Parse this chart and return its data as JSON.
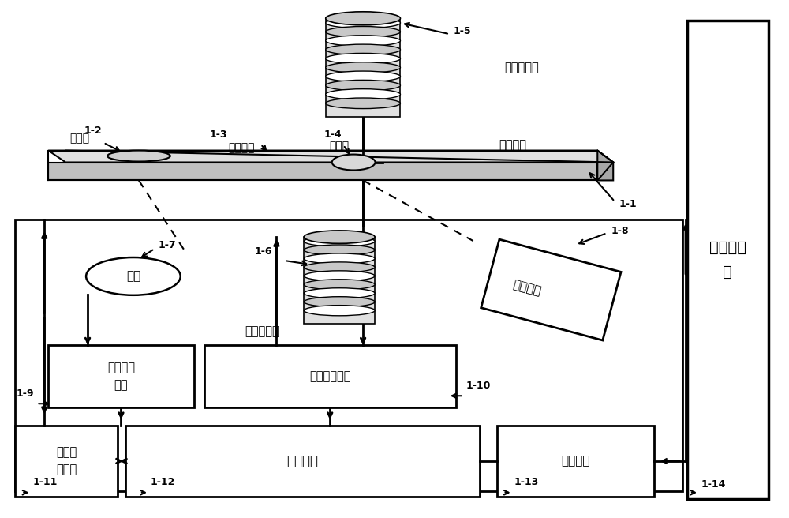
{
  "bg_color": "#ffffff",
  "line_color": "#000000",
  "box_fill": "#ffffff",
  "gray_fill": "#d0d0d0",
  "labels": {
    "chip": "检测芯片",
    "sample_pool": "样品池",
    "center_channel": "中心通道",
    "reaction_pool": "反应池",
    "upper_coil": "上电磁线圈",
    "lower_coil": "下电磁线圈",
    "light_source": "光源",
    "detection_device": "检测装置",
    "light_ctrl": "光源控制\n电路",
    "em_ctrl": "电磁控制电路",
    "main_ctrl": "主控电路",
    "heat_ctrl": "恒温加\n热电路",
    "indicator": "指示装置",
    "computer": "上位计算\n机",
    "label_11": "1-11",
    "label_12": "1-12",
    "label_13": "1-13",
    "label_14": "1-14",
    "label_1": "1-1",
    "label_2": "1-2",
    "label_3": "1-3",
    "label_4": "1-4",
    "label_5": "1-5",
    "label_6": "1-6",
    "label_7": "1-7",
    "label_8": "1-8",
    "label_9": "1-9",
    "label_10": "1-10"
  }
}
